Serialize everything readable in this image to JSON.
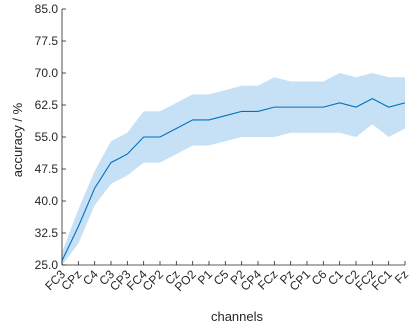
{
  "chart_data": {
    "type": "line",
    "xlabel": "channels",
    "ylabel": "accuracy / %",
    "ylim": [
      25.0,
      85.0
    ],
    "yticks": [
      25.0,
      32.5,
      40.0,
      47.5,
      55.0,
      62.5,
      70.0,
      77.5,
      85.0
    ],
    "categories": [
      "FC3",
      "CPz",
      "C4",
      "C3",
      "CP3",
      "FC4",
      "CP2",
      "Cz",
      "PO2",
      "P1",
      "C5",
      "P2",
      "CP4",
      "FCz",
      "Pz",
      "CP1",
      "C6",
      "C1",
      "C2",
      "FC2",
      "FC1",
      "Fz"
    ],
    "series": [
      {
        "values": [
          26,
          34,
          43,
          49,
          51,
          55,
          55,
          57,
          59,
          59,
          60,
          61,
          61,
          62,
          62,
          62,
          62,
          63,
          62,
          64,
          62,
          63
        ],
        "upper": [
          28,
          38,
          47,
          54,
          56,
          61,
          61,
          63,
          65,
          65,
          66,
          67,
          67,
          69,
          68,
          68,
          68,
          70,
          69,
          70,
          69,
          69
        ],
        "lower": [
          25,
          30,
          39,
          44,
          46,
          49,
          49,
          51,
          53,
          53,
          54,
          55,
          55,
          55,
          56,
          56,
          56,
          56,
          55,
          58,
          55,
          57
        ]
      }
    ],
    "colors": {
      "line": "#0072bd",
      "band": "#c6e0f5",
      "axis": "#262626"
    },
    "grid": false
  }
}
